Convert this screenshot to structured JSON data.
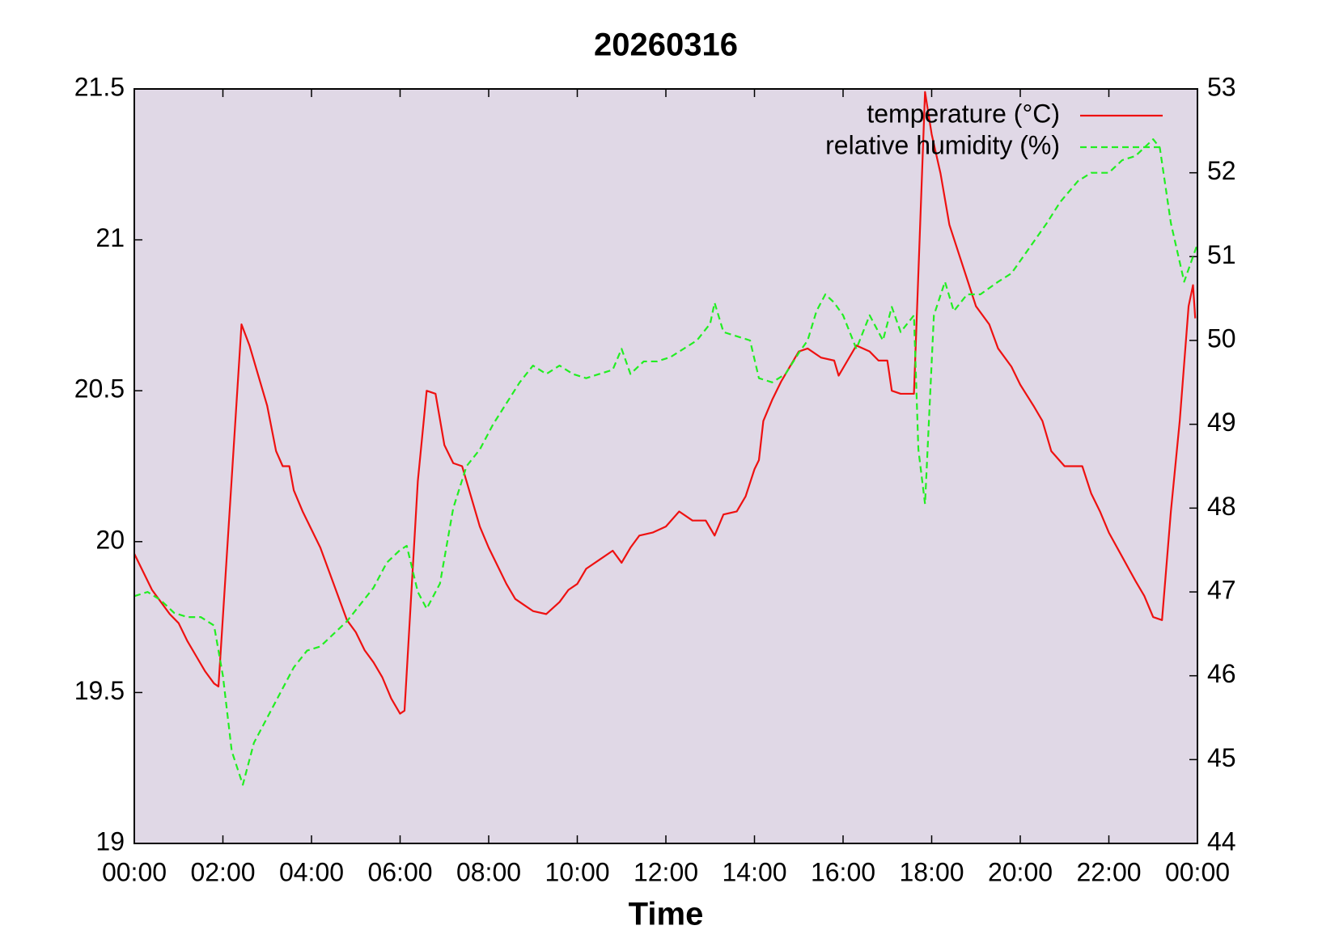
{
  "chart_data": {
    "type": "line",
    "title": "20260316",
    "x_label": "Time",
    "xlim": [
      0,
      24
    ],
    "xticks": [
      {
        "value": 0,
        "label": "00:00"
      },
      {
        "value": 2,
        "label": "02:00"
      },
      {
        "value": 4,
        "label": "04:00"
      },
      {
        "value": 6,
        "label": "06:00"
      },
      {
        "value": 8,
        "label": "08:00"
      },
      {
        "value": 10,
        "label": "10:00"
      },
      {
        "value": 12,
        "label": "12:00"
      },
      {
        "value": 14,
        "label": "14:00"
      },
      {
        "value": 16,
        "label": "16:00"
      },
      {
        "value": 18,
        "label": "18:00"
      },
      {
        "value": 20,
        "label": "20:00"
      },
      {
        "value": 22,
        "label": "22:00"
      },
      {
        "value": 24,
        "label": "00:00"
      }
    ],
    "ylim": [
      19,
      21.5
    ],
    "yticks": [
      19,
      19.5,
      20,
      20.5,
      21,
      21.5
    ],
    "y2lim": [
      44,
      53
    ],
    "y2ticks": [
      44,
      45,
      46,
      47,
      48,
      49,
      50,
      51,
      52,
      53
    ],
    "legend": "upper right",
    "plot_background": "#e0d8e6",
    "series": [
      {
        "name": "temperature (°C)",
        "color": "#ee1111",
        "line_style": "solid",
        "x": [
          0,
          0.2,
          0.4,
          0.6,
          0.8,
          1.0,
          1.2,
          1.4,
          1.6,
          1.8,
          1.9,
          2.42,
          2.6,
          2.8,
          3.0,
          3.2,
          3.35,
          3.5,
          3.6,
          3.8,
          4.0,
          4.2,
          4.4,
          4.6,
          4.8,
          5.0,
          5.2,
          5.4,
          5.6,
          5.8,
          6.0,
          6.1,
          6.4,
          6.6,
          6.8,
          7.0,
          7.2,
          7.4,
          7.6,
          7.8,
          8.0,
          8.2,
          8.4,
          8.6,
          8.8,
          9.0,
          9.3,
          9.6,
          9.8,
          10.0,
          10.2,
          10.5,
          10.8,
          11.0,
          11.2,
          11.4,
          11.7,
          12.0,
          12.3,
          12.6,
          12.9,
          13.1,
          13.3,
          13.6,
          13.8,
          14.0,
          14.1,
          14.2,
          14.4,
          14.6,
          14.8,
          15.0,
          15.2,
          15.5,
          15.8,
          15.9,
          16.1,
          16.3,
          16.6,
          16.8,
          17.0,
          17.1,
          17.3,
          17.6,
          17.85,
          18.0,
          18.2,
          18.4,
          18.6,
          18.8,
          19.0,
          19.3,
          19.5,
          19.8,
          20.0,
          20.3,
          20.5,
          20.7,
          21.0,
          21.4,
          21.6,
          21.8,
          22.0,
          22.3,
          22.6,
          22.8,
          23.0,
          23.2,
          23.4,
          23.6,
          23.8,
          23.9,
          23.95
        ],
        "values": [
          19.96,
          19.9,
          19.84,
          19.8,
          19.76,
          19.73,
          19.67,
          19.62,
          19.57,
          19.53,
          19.52,
          20.72,
          20.65,
          20.55,
          20.45,
          20.3,
          20.25,
          20.25,
          20.17,
          20.1,
          20.04,
          19.98,
          19.9,
          19.82,
          19.74,
          19.7,
          19.64,
          19.6,
          19.55,
          19.48,
          19.43,
          19.44,
          20.2,
          20.5,
          20.49,
          20.32,
          20.26,
          20.25,
          20.15,
          20.05,
          19.98,
          19.92,
          19.86,
          19.81,
          19.79,
          19.77,
          19.76,
          19.8,
          19.84,
          19.86,
          19.91,
          19.94,
          19.97,
          19.93,
          19.98,
          20.02,
          20.03,
          20.05,
          20.1,
          20.07,
          20.07,
          20.02,
          20.09,
          20.1,
          20.15,
          20.24,
          20.27,
          20.4,
          20.47,
          20.53,
          20.58,
          20.63,
          20.64,
          20.61,
          20.6,
          20.55,
          20.6,
          20.65,
          20.63,
          20.6,
          20.6,
          20.5,
          20.49,
          20.49,
          21.49,
          21.35,
          21.22,
          21.05,
          20.96,
          20.87,
          20.78,
          20.72,
          20.64,
          20.58,
          20.52,
          20.45,
          20.4,
          20.3,
          20.25,
          20.25,
          20.16,
          20.1,
          20.03,
          19.95,
          19.87,
          19.82,
          19.75,
          19.74,
          20.1,
          20.4,
          20.78,
          20.85,
          20.74
        ]
      },
      {
        "name": "relative humidity (%)",
        "color": "#22ee22",
        "line_style": "dashed",
        "axis": "y2",
        "x": [
          0,
          0.3,
          0.6,
          0.9,
          1.2,
          1.5,
          1.8,
          2.0,
          2.2,
          2.45,
          2.7,
          3.0,
          3.3,
          3.6,
          3.9,
          4.2,
          4.5,
          4.8,
          5.1,
          5.4,
          5.7,
          6.0,
          6.15,
          6.4,
          6.6,
          6.9,
          7.2,
          7.5,
          7.8,
          8.1,
          8.4,
          8.7,
          9.0,
          9.3,
          9.6,
          9.9,
          10.2,
          10.5,
          10.8,
          11.0,
          11.2,
          11.5,
          11.8,
          12.1,
          12.4,
          12.7,
          13.0,
          13.1,
          13.3,
          13.6,
          13.9,
          14.1,
          14.4,
          14.7,
          15.0,
          15.2,
          15.4,
          15.6,
          15.8,
          16.0,
          16.3,
          16.6,
          16.9,
          17.1,
          17.3,
          17.6,
          17.7,
          17.85,
          18.05,
          18.3,
          18.5,
          18.8,
          19.1,
          19.5,
          19.8,
          20.2,
          20.6,
          20.9,
          21.3,
          21.6,
          22.0,
          22.3,
          22.6,
          22.8,
          23.0,
          23.15,
          23.4,
          23.7,
          23.9,
          24
        ],
        "values": [
          46.95,
          47.0,
          46.9,
          46.75,
          46.7,
          46.7,
          46.6,
          46.0,
          45.1,
          44.7,
          45.2,
          45.5,
          45.8,
          46.1,
          46.3,
          46.35,
          46.5,
          46.65,
          46.85,
          47.05,
          47.35,
          47.5,
          47.55,
          47.0,
          46.8,
          47.1,
          48.0,
          48.5,
          48.7,
          49.0,
          49.25,
          49.5,
          49.7,
          49.6,
          49.7,
          49.6,
          49.55,
          49.6,
          49.65,
          49.9,
          49.6,
          49.75,
          49.75,
          49.8,
          49.9,
          50.0,
          50.2,
          50.45,
          50.1,
          50.05,
          50.0,
          49.55,
          49.5,
          49.6,
          49.85,
          50.0,
          50.35,
          50.55,
          50.45,
          50.3,
          49.9,
          50.3,
          50.0,
          50.4,
          50.1,
          50.3,
          48.7,
          48.05,
          50.3,
          50.7,
          50.35,
          50.55,
          50.55,
          50.7,
          50.8,
          51.1,
          51.4,
          51.65,
          51.9,
          52.0,
          52.0,
          52.15,
          52.2,
          52.3,
          52.4,
          52.3,
          51.4,
          50.7,
          51.0,
          51.15
        ]
      }
    ]
  }
}
